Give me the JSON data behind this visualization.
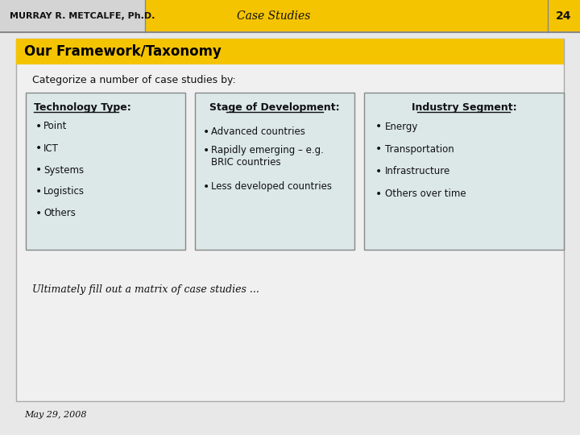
{
  "bg_color": "#e8e8e8",
  "header_left_color": "#d4d4d4",
  "header_center_color": "#f5c400",
  "header_left_text": "MURRAY R. METCALFE, Ph.D.",
  "header_center_text": "Case Studies",
  "header_page_num": "24",
  "slide_border_color": "#aaaaaa",
  "title_bar_color": "#f5c400",
  "title_text": "Our Framework/Taxonomy",
  "title_text_color": "#000000",
  "intro_text": "Categorize a number of case studies by:",
  "box_bg_color": "#dce8e8",
  "box_border_color": "#888888",
  "col1_header": "Technology Type:",
  "col1_items": [
    "Point",
    "ICT",
    "Systems",
    "Logistics",
    "Others"
  ],
  "col2_header": "Stage of Development:",
  "col2_items": [
    "Advanced countries",
    "Rapidly emerging – e.g.\nBRIC countries",
    "Less developed countries"
  ],
  "col3_header": "Industry Segment:",
  "col3_items": [
    "Energy",
    "Transportation",
    "Infrastructure",
    "Others over time"
  ],
  "footer_text": "Ultimately fill out a matrix of case studies ...",
  "date_text": "May 29, 2008"
}
